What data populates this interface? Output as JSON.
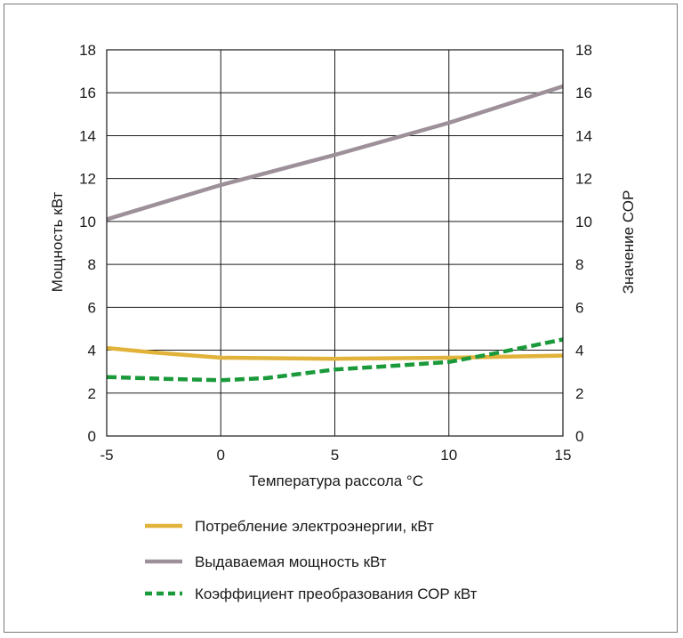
{
  "chart_data": {
    "type": "line",
    "title": "",
    "xlabel": "Температура рассола °С",
    "ylabel": "Мощность кВт",
    "y2label": "Значение СОР",
    "xlim": [
      -5,
      15
    ],
    "ylim": [
      0,
      18
    ],
    "y2lim": [
      0,
      18
    ],
    "xticks": [
      "-5",
      "0",
      "5",
      "10",
      "15"
    ],
    "yticks": [
      "0",
      "2",
      "4",
      "6",
      "8",
      "10",
      "12",
      "14",
      "16",
      "18"
    ],
    "y2ticks": [
      "0",
      "2",
      "4",
      "6",
      "8",
      "10",
      "12",
      "14",
      "16",
      "18"
    ],
    "grid": true,
    "legend_position": "bottom",
    "series": [
      {
        "name": "Потребление электроэнергии, кВт",
        "color": "#e2b33a",
        "style": "solid",
        "x": [
          -5,
          -3,
          0,
          5,
          10,
          15
        ],
        "y": [
          4.1,
          3.9,
          3.65,
          3.6,
          3.65,
          3.75
        ]
      },
      {
        "name": "Выдаваемая мощность кВт",
        "color": "#9d9099",
        "style": "solid",
        "x": [
          -5,
          0,
          5,
          10,
          15
        ],
        "y": [
          10.1,
          11.7,
          13.1,
          14.6,
          16.3
        ]
      },
      {
        "name": "Коэффициент преобразования СОР кВт",
        "color": "#1a9a3a",
        "style": "dashed",
        "x": [
          -5,
          -2,
          0,
          2,
          5,
          8,
          10,
          12,
          15
        ],
        "y": [
          2.75,
          2.65,
          2.6,
          2.7,
          3.1,
          3.3,
          3.45,
          3.85,
          4.5
        ]
      }
    ]
  }
}
